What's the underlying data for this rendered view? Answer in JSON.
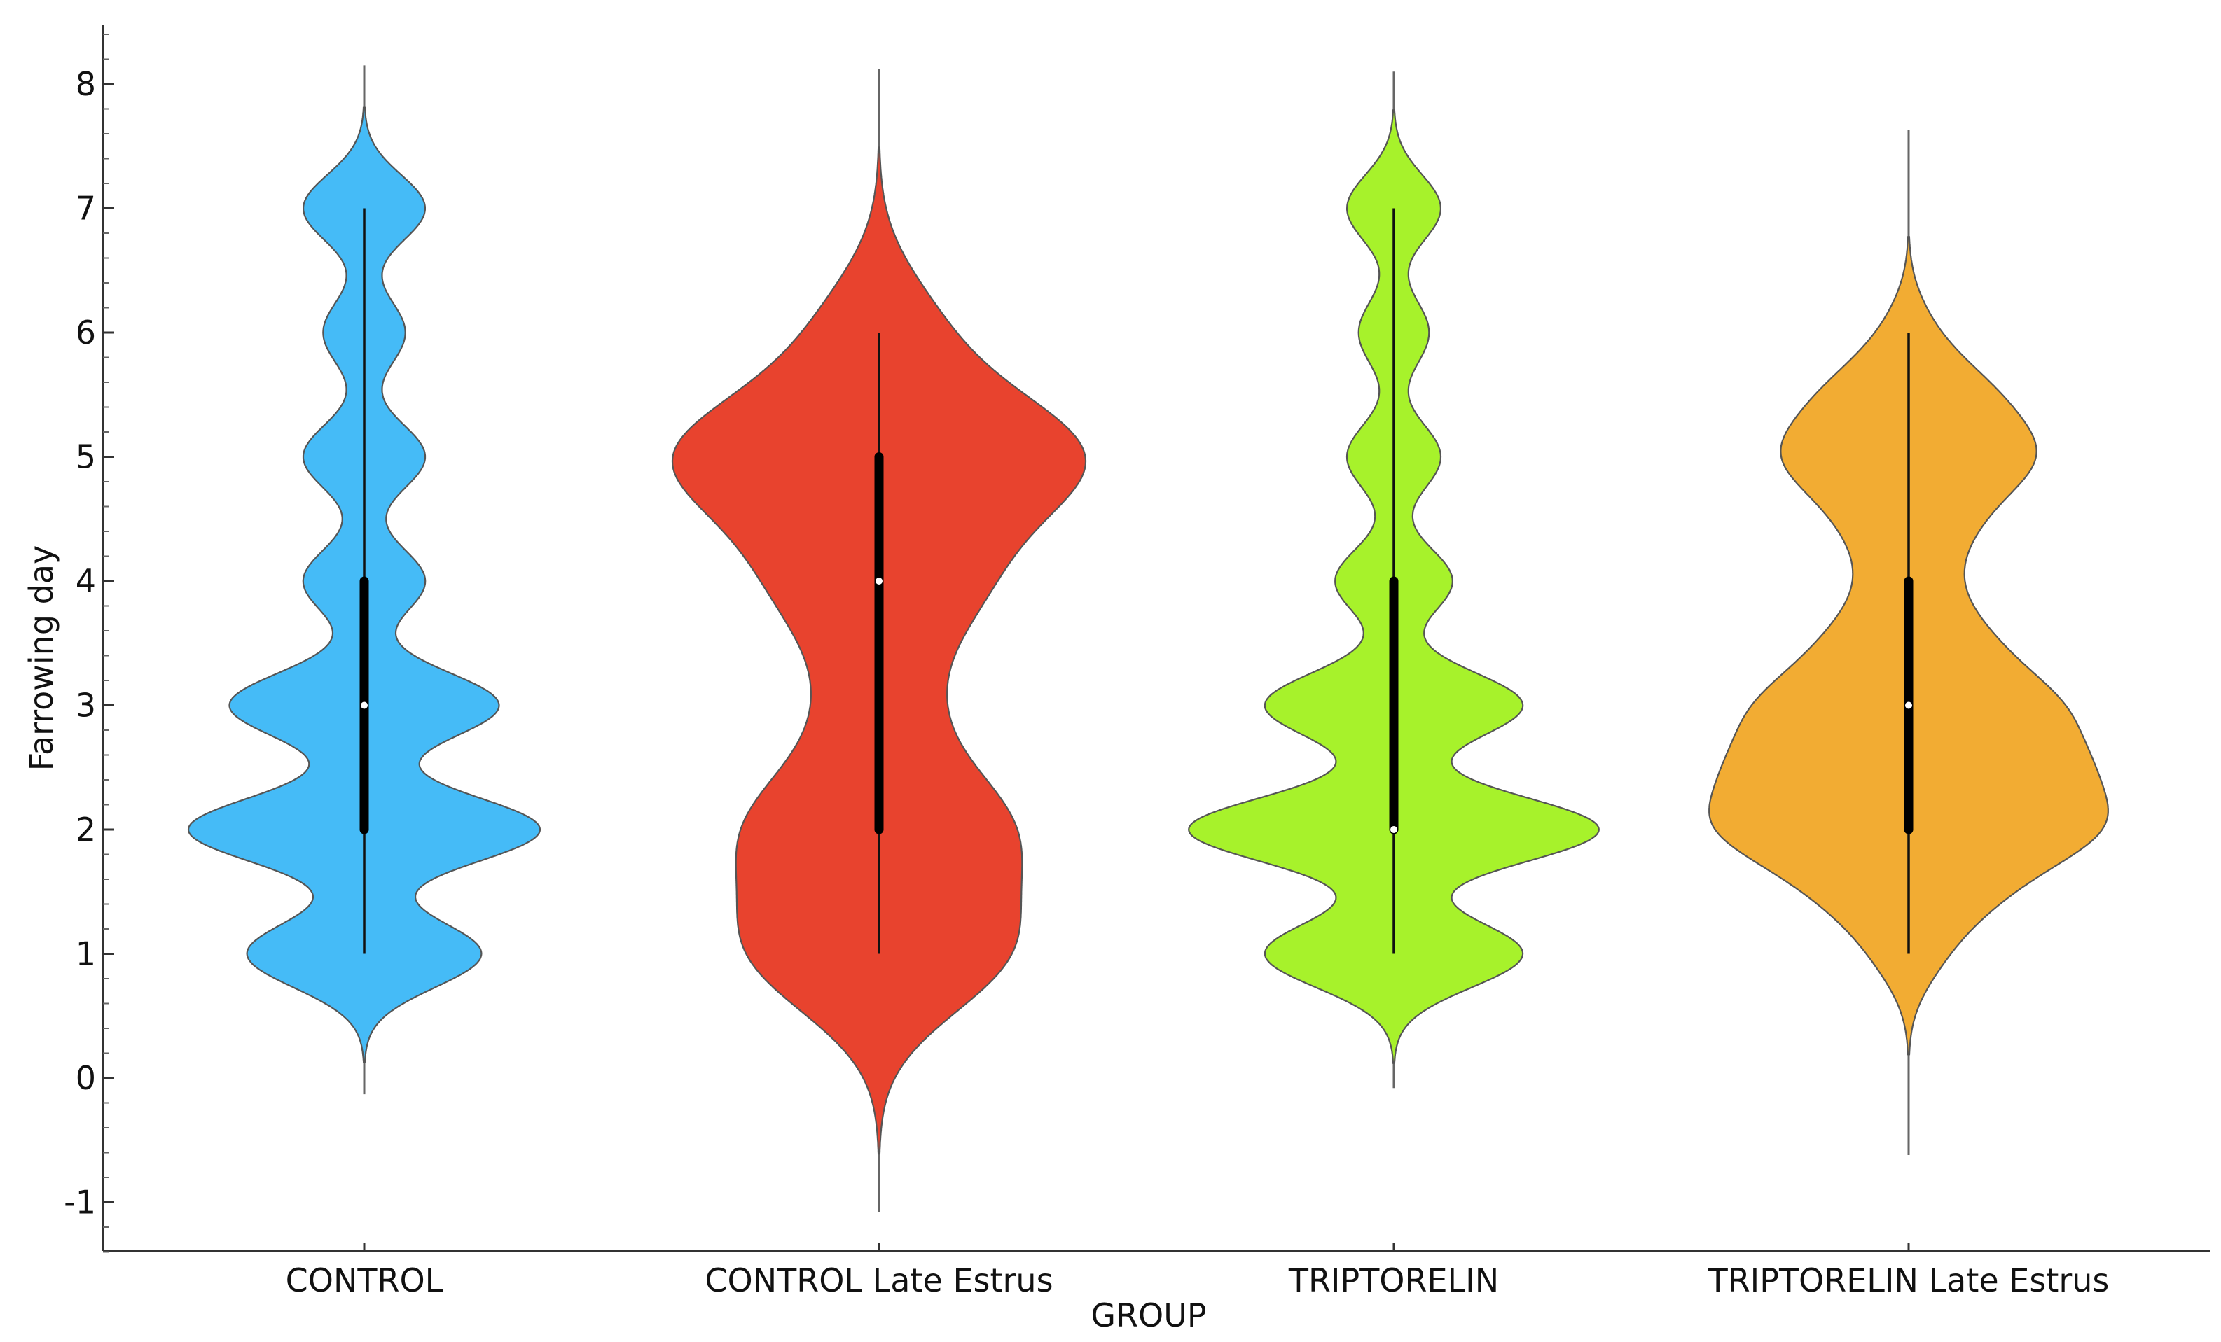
{
  "chart_data": {
    "type": "violin",
    "xlabel": "GROUP",
    "ylabel": "Farrowing day",
    "ylim": [
      -1.4,
      8.45
    ],
    "yticks": [
      -1,
      0,
      1,
      2,
      3,
      4,
      5,
      6,
      7,
      8
    ],
    "ytick_labels": [
      "-1",
      "0",
      "1",
      "2",
      "3",
      "4",
      "5",
      "6",
      "7",
      "8"
    ],
    "groups": [
      {
        "category": "CONTROL",
        "color": "#45bbf7",
        "bandwidth": 0.27,
        "data_min": 1,
        "data_max": 7,
        "q1": 2,
        "median": 3,
        "q3": 4,
        "line_min": -0.13,
        "line_max": 8.15,
        "density_points": [
          [
            1,
            1.0
          ],
          [
            2,
            1.5
          ],
          [
            3,
            1.15
          ],
          [
            4,
            0.52
          ],
          [
            5,
            0.52
          ],
          [
            6,
            0.35
          ],
          [
            7,
            0.52
          ]
        ]
      },
      {
        "category": "CONTROL Late Estrus",
        "color": "#e8432e",
        "bandwidth": 0.5,
        "data_min": 1,
        "data_max": 6,
        "q1": 2,
        "median": 4,
        "q3": 5,
        "line_min": -1.08,
        "line_max": 8.12,
        "density_points": [
          [
            1,
            1.0
          ],
          [
            2,
            1.0
          ],
          [
            3,
            0.35
          ],
          [
            4,
            0.75
          ],
          [
            5,
            1.6
          ],
          [
            6,
            0.45
          ]
        ]
      },
      {
        "category": "TRIPTORELIN",
        "color": "#a7f22b",
        "bandwidth": 0.27,
        "data_min": 1,
        "data_max": 7,
        "q1": 2,
        "median": 2,
        "q3": 4,
        "line_min": -0.08,
        "line_max": 8.1,
        "density_points": [
          [
            1,
            1.1
          ],
          [
            2,
            1.75
          ],
          [
            3,
            1.1
          ],
          [
            4,
            0.5
          ],
          [
            5,
            0.4
          ],
          [
            6,
            0.3
          ],
          [
            7,
            0.4
          ]
        ]
      },
      {
        "category": "TRIPTORELIN Late Estrus",
        "color": "#f2ac33",
        "bandwidth": 0.3,
        "data_min": 1,
        "data_max": 6,
        "q1": 2,
        "median": 3,
        "q3": 4,
        "line_min": -0.62,
        "line_max": 7.63,
        "density_points": [
          [
            1,
            0.22
          ],
          [
            1.5,
            0.55
          ],
          [
            2,
            1.25
          ],
          [
            2.5,
            1.05
          ],
          [
            3,
            0.95
          ],
          [
            3.5,
            0.5
          ],
          [
            4,
            0.25
          ],
          [
            4.5,
            0.4
          ],
          [
            5,
            0.85
          ],
          [
            5.5,
            0.55
          ],
          [
            6,
            0.15
          ]
        ]
      }
    ]
  }
}
